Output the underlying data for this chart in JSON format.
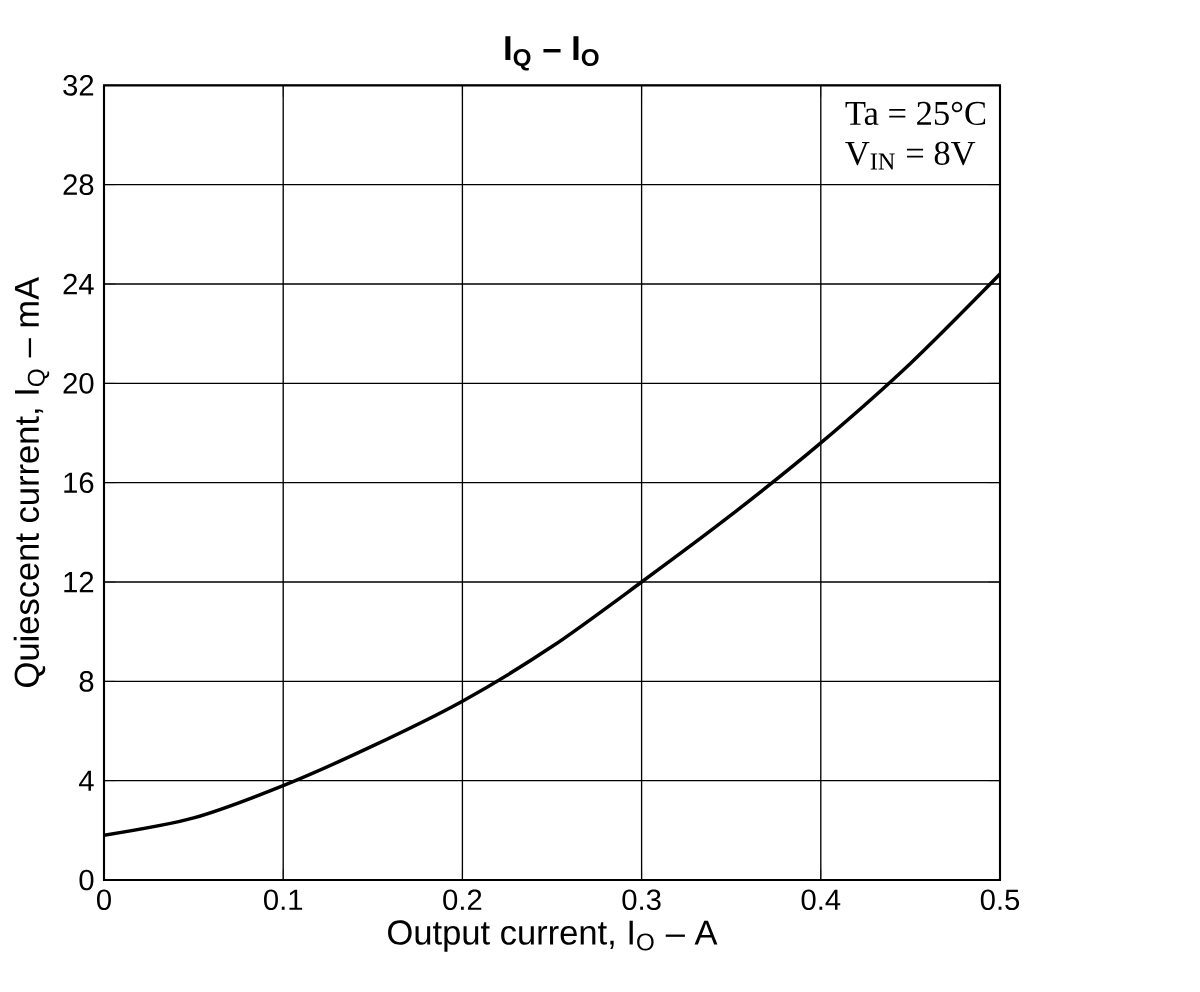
{
  "chart_data": {
    "type": "line",
    "title": "I$_{Q}$ – I$_{O}$",
    "xlabel": "Output current, I$_{O}$ – A",
    "ylabel": "Quiescent current, I$_{Q}$ – mA",
    "x": [
      0,
      0.05,
      0.1,
      0.15,
      0.2,
      0.25,
      0.3,
      0.35,
      0.4,
      0.45,
      0.5
    ],
    "series": [
      {
        "color": "#000000",
        "values": [
          1.8,
          2.5,
          3.8,
          5.4,
          7.2,
          9.4,
          12.0,
          14.7,
          17.6,
          20.8,
          24.4
        ]
      }
    ],
    "xlim": [
      0,
      0.5
    ],
    "ylim": [
      0,
      32
    ],
    "xticks": [
      0,
      0.1,
      0.2,
      0.3,
      0.4,
      0.5
    ],
    "yticks": [
      0,
      4,
      8,
      12,
      16,
      20,
      24,
      28,
      32
    ],
    "grid": true,
    "marker": "none",
    "line_style": "solid",
    "annotations": [
      "Ta = 25°C",
      "V$_{IN}$ = 8V"
    ]
  }
}
